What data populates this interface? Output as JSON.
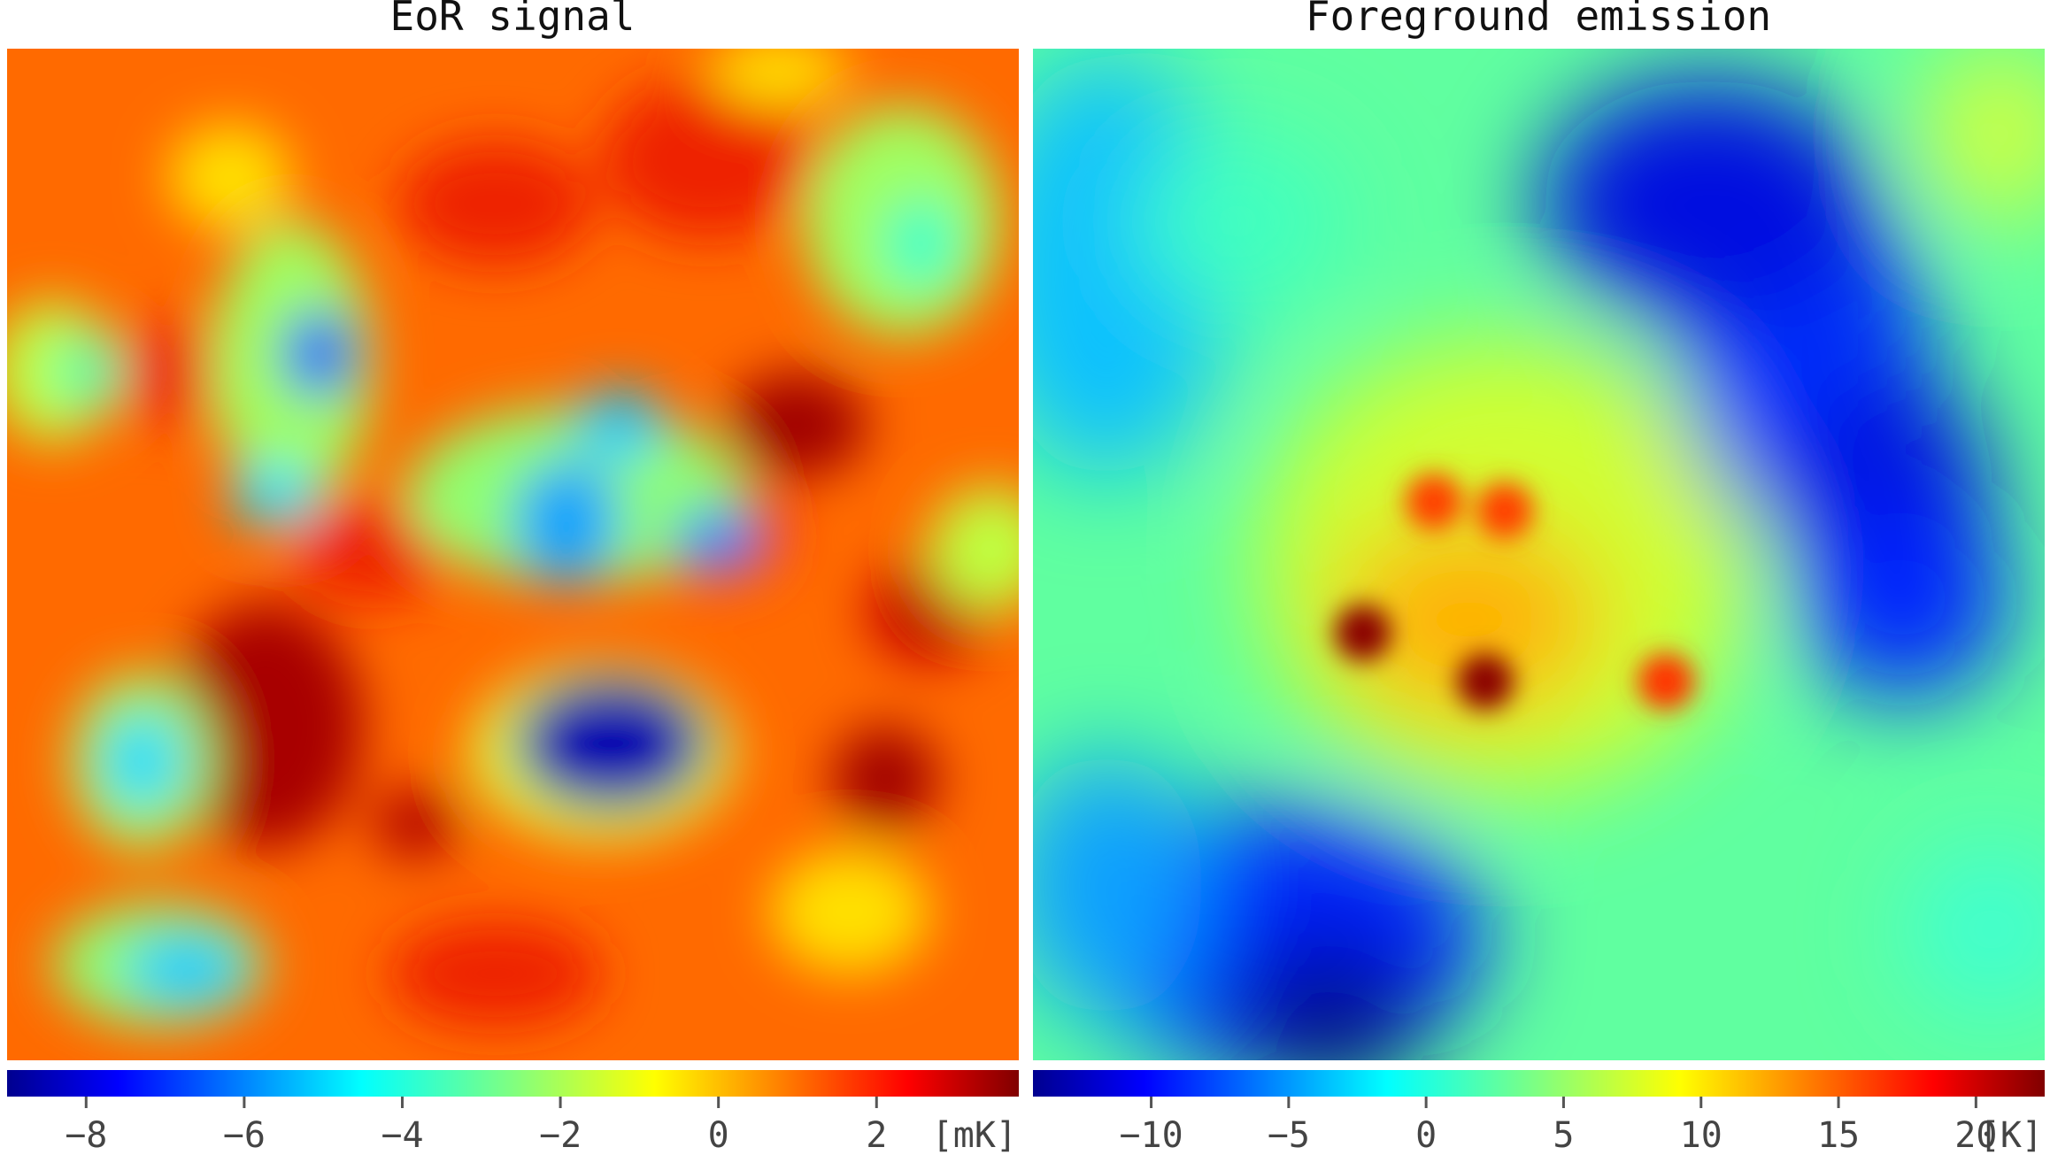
{
  "chart_data": [
    {
      "type": "heatmap",
      "title": "EoR signal",
      "colormap": "jet",
      "unit_label": "[mK]",
      "colorbar_range": [
        -9.0,
        3.8
      ],
      "colorbar_ticks": [
        -8,
        -6,
        -4,
        -2,
        0,
        2
      ],
      "colorbar_tick_labels": [
        "−8",
        "−6",
        "−4",
        "−2",
        "0",
        "2"
      ],
      "xlabel": "",
      "ylabel": ""
    },
    {
      "type": "heatmap",
      "title": "Foreground emission",
      "colormap": "jet",
      "unit_label": "[K]",
      "colorbar_range": [
        -14.3,
        22.5
      ],
      "colorbar_ticks": [
        -10,
        -5,
        0,
        5,
        10,
        15,
        20
      ],
      "colorbar_tick_labels": [
        "−10",
        "−5",
        "0",
        "5",
        "10",
        "15",
        "20"
      ],
      "xlabel": "",
      "ylabel": ""
    }
  ]
}
